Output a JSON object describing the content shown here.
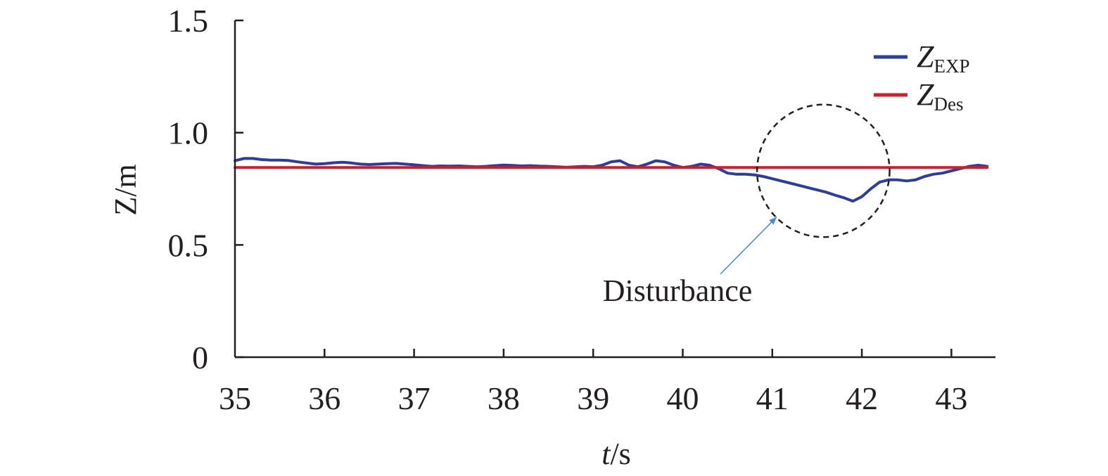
{
  "chart_data": {
    "type": "line",
    "xlabel": {
      "italic": "t",
      "rest": "/s"
    },
    "ylabel": "Z/m",
    "xlim": [
      35,
      43.5
    ],
    "ylim": [
      0,
      1.5
    ],
    "xticks": [
      "35",
      "36",
      "37",
      "38",
      "39",
      "40",
      "41",
      "42",
      "43"
    ],
    "yticks": [
      "0",
      "0.5",
      "1.0",
      "1.5"
    ],
    "grid": false,
    "legend_position": "top-right",
    "series": [
      {
        "name": "Z_EXP",
        "label_main": "Z",
        "label_sub": "EXP",
        "color": "#2e3d98",
        "x": [
          35.0,
          35.1,
          35.2,
          35.3,
          35.4,
          35.5,
          35.6,
          35.7,
          35.8,
          35.9,
          36.0,
          36.1,
          36.2,
          36.3,
          36.4,
          36.5,
          36.6,
          36.7,
          36.8,
          36.9,
          37.0,
          37.1,
          37.2,
          37.3,
          37.4,
          37.5,
          37.6,
          37.7,
          37.8,
          37.9,
          38.0,
          38.1,
          38.2,
          38.3,
          38.4,
          38.5,
          38.6,
          38.7,
          38.8,
          38.9,
          39.0,
          39.1,
          39.2,
          39.3,
          39.4,
          39.5,
          39.6,
          39.7,
          39.8,
          39.9,
          40.0,
          40.1,
          40.2,
          40.3,
          40.4,
          40.5,
          40.6,
          40.7,
          40.8,
          40.9,
          41.0,
          41.1,
          41.2,
          41.3,
          41.4,
          41.5,
          41.6,
          41.7,
          41.8,
          41.9,
          42.0,
          42.1,
          42.2,
          42.3,
          42.4,
          42.5,
          42.6,
          42.7,
          42.8,
          42.9,
          43.0,
          43.1,
          43.2,
          43.3,
          43.4
        ],
        "values": [
          0.875,
          0.885,
          0.885,
          0.88,
          0.878,
          0.878,
          0.876,
          0.87,
          0.865,
          0.86,
          0.862,
          0.866,
          0.868,
          0.865,
          0.86,
          0.858,
          0.86,
          0.862,
          0.863,
          0.86,
          0.857,
          0.853,
          0.85,
          0.852,
          0.851,
          0.852,
          0.85,
          0.848,
          0.85,
          0.853,
          0.856,
          0.854,
          0.852,
          0.853,
          0.851,
          0.85,
          0.848,
          0.846,
          0.848,
          0.85,
          0.848,
          0.855,
          0.87,
          0.875,
          0.855,
          0.848,
          0.86,
          0.875,
          0.87,
          0.855,
          0.845,
          0.85,
          0.86,
          0.855,
          0.84,
          0.82,
          0.815,
          0.815,
          0.812,
          0.805,
          0.795,
          0.785,
          0.775,
          0.765,
          0.755,
          0.745,
          0.735,
          0.722,
          0.71,
          0.695,
          0.715,
          0.75,
          0.78,
          0.79,
          0.79,
          0.785,
          0.79,
          0.805,
          0.815,
          0.82,
          0.83,
          0.84,
          0.85,
          0.855,
          0.85
        ]
      },
      {
        "name": "Z_Des",
        "label_main": "Z",
        "label_sub": "Des",
        "color": "#c8202e",
        "x": [
          35.0,
          43.4
        ],
        "values": [
          0.845,
          0.845
        ]
      }
    ],
    "annotation": {
      "text": "Disturbance",
      "circle_center": [
        41.57,
        0.83
      ],
      "circle_radius_x": 0.74,
      "circle_radius_y": 0.295,
      "arrow_from": [
        40.42,
        0.37
      ],
      "arrow_to": [
        41.05,
        0.625
      ]
    }
  }
}
